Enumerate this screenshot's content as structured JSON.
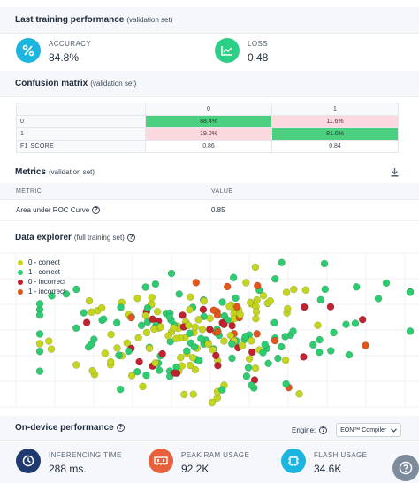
{
  "training": {
    "title": "Last training performance",
    "subtitle": "(validation set)",
    "accuracy": {
      "label": "ACCURACY",
      "value": "84.8%",
      "icon": "percent-icon",
      "color": "#1cb5e0"
    },
    "loss": {
      "label": "LOSS",
      "value": "0.48",
      "icon": "chart-line-icon",
      "color": "#2ccf85"
    }
  },
  "confusion": {
    "title": "Confusion matrix",
    "subtitle": "(validation set)",
    "col_headers": [
      "0",
      "1"
    ],
    "rows": [
      {
        "label": "0",
        "cells": [
          "88.4%",
          "11.6%"
        ]
      },
      {
        "label": "1",
        "cells": [
          "19.0%",
          "81.0%"
        ]
      }
    ],
    "f1": {
      "label": "F1 SCORE",
      "cells": [
        "0.86",
        "0.84"
      ]
    },
    "colors": {
      "correct": "#4cd080",
      "incorrect": "#fbd9de"
    }
  },
  "metrics": {
    "title": "Metrics",
    "subtitle": "(validation set)",
    "headers": {
      "metric": "METRIC",
      "value": "VALUE"
    },
    "rows": [
      {
        "metric": "Area under ROC Curve",
        "value": "0.85"
      }
    ]
  },
  "explorer": {
    "title": "Data explorer",
    "subtitle": "(full training set)",
    "legend": [
      {
        "label": "0 - correct",
        "color": "#c3d51f"
      },
      {
        "label": "1 - correct",
        "color": "#2ecc71"
      },
      {
        "label": "0 - incorrect",
        "color": "#c0232f"
      },
      {
        "label": "1 - incorrect",
        "color": "#e0561b"
      }
    ]
  },
  "chart_data": {
    "type": "scatter",
    "title": "",
    "series": [
      {
        "name": "0 - correct",
        "color": "#c3d51f"
      },
      {
        "name": "1 - correct",
        "color": "#2ecc71"
      },
      {
        "name": "0 - incorrect",
        "color": "#c0232f"
      },
      {
        "name": "1 - incorrect",
        "color": "#e0561b"
      }
    ],
    "grid": true,
    "legend": "top-left"
  },
  "ondevice": {
    "title": "On-device performance",
    "engine_label": "Engine:",
    "engine_value": "EON™ Compiler",
    "inferencing": {
      "label": "INFERENCING TIME",
      "value": "288 ms.",
      "color": "#1e3a6e"
    },
    "ram": {
      "label": "PEAK RAM USAGE",
      "value": "92.2K",
      "color": "#e8613c"
    },
    "flash": {
      "label": "FLASH USAGE",
      "value": "34.6K",
      "color": "#1cb5e0"
    }
  }
}
